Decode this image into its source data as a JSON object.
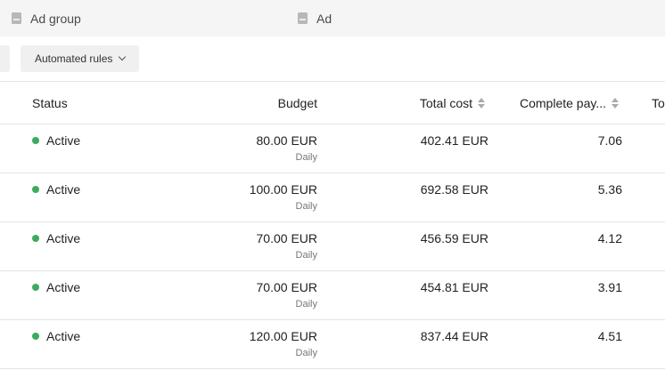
{
  "tabs": [
    {
      "label": "Ad group",
      "icon": "document-icon"
    },
    {
      "label": "Ad",
      "icon": "document-icon"
    }
  ],
  "toolbar": {
    "automated_rules_label": "Automated rules"
  },
  "columns": {
    "status": "Status",
    "budget": "Budget",
    "total_cost": "Total cost",
    "complete_pay": "Complete pay...",
    "next": "Tot"
  },
  "rows": [
    {
      "status": "Active",
      "budget": "80.00 EUR",
      "budget_period": "Daily",
      "total_cost": "402.41 EUR",
      "complete_pay": "7.06"
    },
    {
      "status": "Active",
      "budget": "100.00 EUR",
      "budget_period": "Daily",
      "total_cost": "692.58 EUR",
      "complete_pay": "5.36"
    },
    {
      "status": "Active",
      "budget": "70.00 EUR",
      "budget_period": "Daily",
      "total_cost": "456.59 EUR",
      "complete_pay": "4.12"
    },
    {
      "status": "Active",
      "budget": "70.00 EUR",
      "budget_period": "Daily",
      "total_cost": "454.81 EUR",
      "complete_pay": "3.91"
    },
    {
      "status": "Active",
      "budget": "120.00 EUR",
      "budget_period": "Daily",
      "total_cost": "837.44 EUR",
      "complete_pay": "4.51"
    }
  ],
  "colors": {
    "active_status": "#3dab5e",
    "tabbar_bg": "#f5f5f5"
  }
}
